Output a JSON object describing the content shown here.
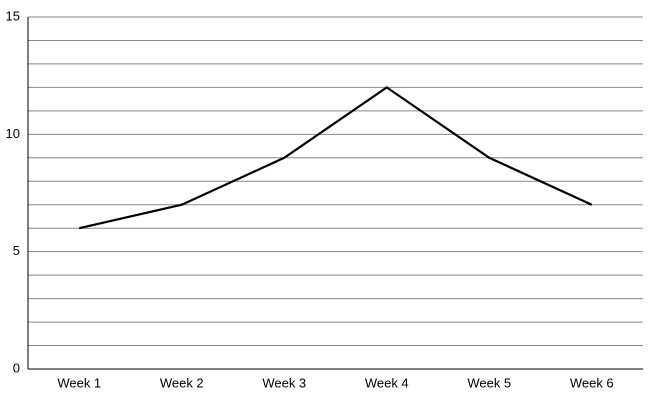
{
  "chart_data": {
    "type": "line",
    "categories": [
      "Week 1",
      "Week 2",
      "Week 3",
      "Week 4",
      "Week 5",
      "Week 6"
    ],
    "values": [
      6,
      7,
      9,
      12,
      9,
      7
    ],
    "color": "#000000",
    "ylim": [
      0,
      15
    ],
    "yticks": [
      0,
      5,
      10,
      15
    ],
    "minor_yticks": [
      1,
      2,
      3,
      4,
      6,
      7,
      8,
      9,
      11,
      12,
      13,
      14
    ],
    "grid": true
  }
}
